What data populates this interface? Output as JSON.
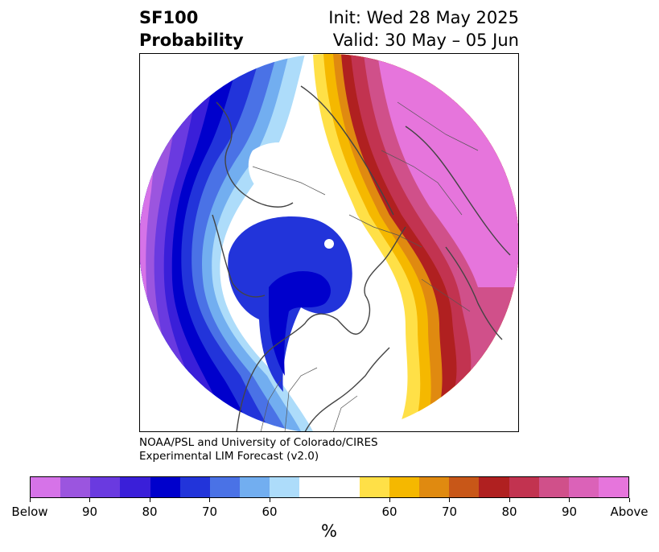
{
  "title": {
    "left_line1": "SF100",
    "left_line2": "Probability",
    "right_line1": "Init: Wed 28 May 2025",
    "right_line2": "Valid: 30 May – 05 Jun"
  },
  "credit": {
    "line1": "NOAA/PSL and University of Colorado/CIRES",
    "line2": "Experimental LIM Forecast (v2.0)"
  },
  "colorbar": {
    "unit": "%",
    "colors": [
      "#d673e8",
      "#9b55df",
      "#6a3ae0",
      "#3a1fd9",
      "#0000cc",
      "#2234da",
      "#4a72e6",
      "#72aef0",
      "#addcfa",
      "#ffffff",
      "#ffffff",
      "#ffe047",
      "#f5b800",
      "#e08a10",
      "#c85718",
      "#b02020",
      "#c23350",
      "#d0508a",
      "#db62b8",
      "#e675dc"
    ],
    "ticks": [
      "Below",
      "90",
      "80",
      "70",
      "60",
      "60",
      "70",
      "80",
      "90",
      "Above"
    ]
  }
}
